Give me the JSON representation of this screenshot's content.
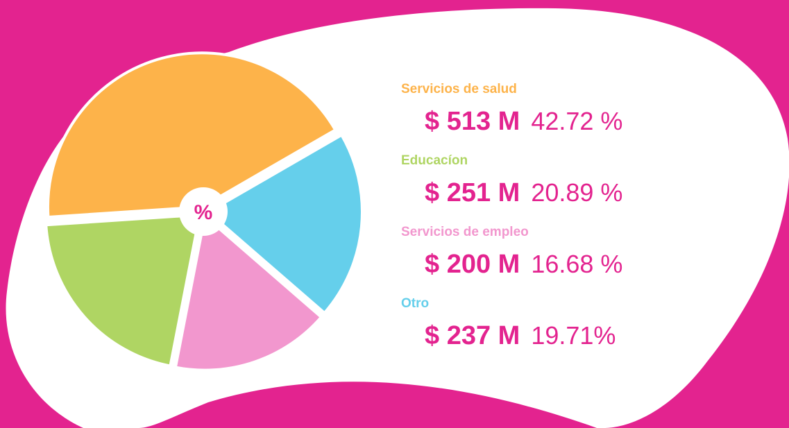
{
  "chart_data": {
    "type": "pie",
    "center_label": "%",
    "categories": [
      "Servicios de salud",
      "Educacíon",
      "Servicios de empleo",
      "Otro"
    ],
    "values": [
      42.72,
      20.89,
      16.68,
      19.71
    ],
    "value_labels": [
      "42.72 %",
      "20.89 %",
      "16.68 %",
      "19.71%"
    ],
    "amounts": [
      513,
      251,
      200,
      237
    ],
    "amount_labels": [
      "$ 513 M",
      "$ 251 M",
      "$ 200 M",
      "$ 237 M"
    ],
    "colors": [
      "#fdb34a",
      "#afd563",
      "#f297ce",
      "#65cfeb"
    ]
  }
}
